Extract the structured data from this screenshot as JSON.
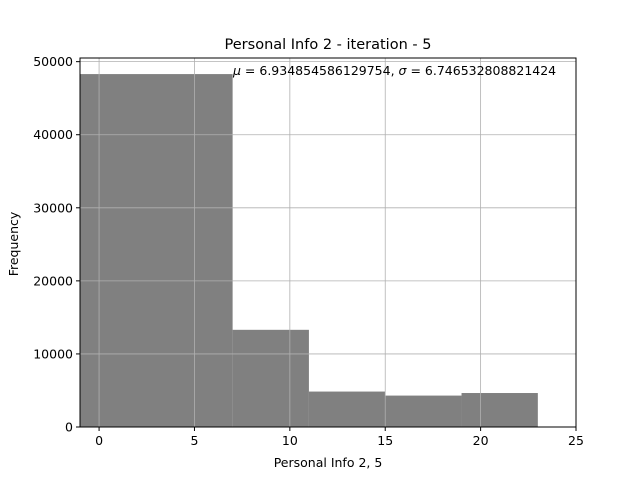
{
  "chart_data": {
    "type": "bar",
    "title": "Personal Info 2 - iteration - 5",
    "xlabel": "Personal Info 2, 5",
    "ylabel": "Frequency",
    "annotation": "μ = 6.934854586129754,  σ = 6.746532808821424",
    "annotation_parts": {
      "mu_symbol": "μ",
      "mu_value": " = 6.934854586129754,  ",
      "sigma_symbol": "σ",
      "sigma_value": " = 6.746532808821424"
    },
    "xlim": [
      -1,
      25
    ],
    "ylim": [
      0,
      50500
    ],
    "xticks": [
      0,
      5,
      10,
      15,
      20,
      25
    ],
    "yticks": [
      0,
      10000,
      20000,
      30000,
      40000,
      50000
    ],
    "grid": true,
    "bar_color": "#808080",
    "grid_color": "#b0b0b0",
    "bins": [
      {
        "start": -1,
        "end": 7,
        "value": 48300
      },
      {
        "start": 7,
        "end": 11,
        "value": 13300
      },
      {
        "start": 11,
        "end": 15,
        "value": 4850
      },
      {
        "start": 15,
        "end": 19,
        "value": 4300
      },
      {
        "start": 19,
        "end": 23,
        "value": 4650
      }
    ]
  }
}
